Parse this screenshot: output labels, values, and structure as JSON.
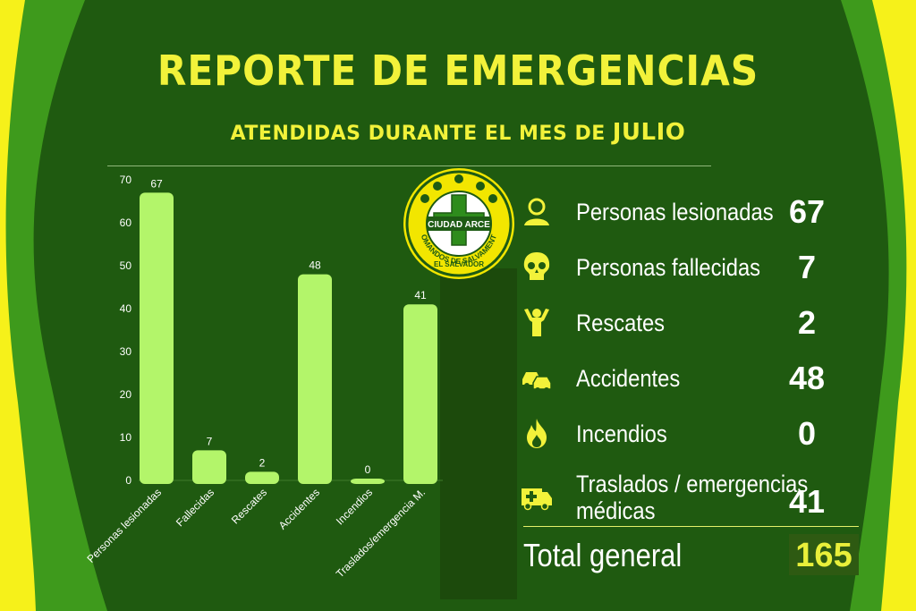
{
  "header": {
    "title": "REPORTE DE EMERGENCIAS",
    "subtitle": "ATENDIDAS DURANTE EL MES DE",
    "month": "JULIO"
  },
  "logo": {
    "name": "CIUDAD ARCE",
    "ring_text": "COMANDOS DE SALVAMENTO",
    "country": "EL SALVADOR"
  },
  "colors": {
    "bar": "#b3f56a",
    "background": "#1f5a10",
    "title": "#f2f23a",
    "accent_band": "#f6f11a"
  },
  "chart_data": {
    "type": "bar",
    "categories": [
      "Personas lesionadas",
      "Fallecidas",
      "Rescates",
      "Accidentes",
      "Incendios",
      "Traslados/emergencia M."
    ],
    "values": [
      67,
      7,
      2,
      48,
      0,
      41
    ],
    "ylim": [
      0,
      70
    ],
    "yticks": [
      0,
      10,
      20,
      30,
      40,
      50,
      60,
      70
    ],
    "data_labels": true,
    "grid": false
  },
  "stats": [
    {
      "icon": "person-icon",
      "label": "Personas lesionadas",
      "value": "67"
    },
    {
      "icon": "skull-icon",
      "label": "Personas fallecidas",
      "value": "7"
    },
    {
      "icon": "rescue-person-icon",
      "label": "Rescates",
      "value": "2"
    },
    {
      "icon": "car-crash-icon",
      "label": "Accidentes",
      "value": "48"
    },
    {
      "icon": "fire-icon",
      "label": "Incendios",
      "value": "0"
    },
    {
      "icon": "ambulance-icon",
      "label": "Traslados / emergencias médicas",
      "value": "41"
    }
  ],
  "total": {
    "label": "Total general",
    "value": "165"
  }
}
